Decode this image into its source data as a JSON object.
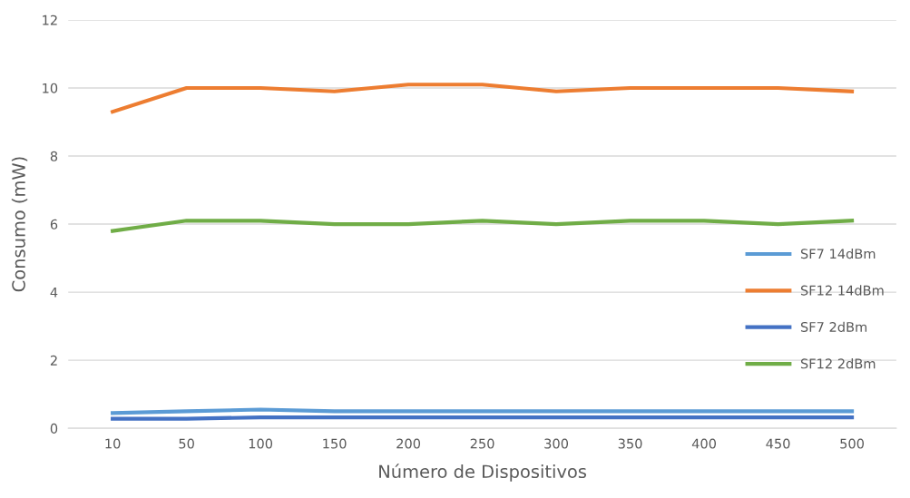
{
  "chart_data": {
    "type": "line",
    "xlabel": "Número de Dispositivos",
    "ylabel": "Consumo (mW)",
    "categories": [
      "10",
      "50",
      "100",
      "150",
      "200",
      "250",
      "300",
      "350",
      "400",
      "450",
      "500"
    ],
    "series": [
      {
        "name": "SF7 14dBm",
        "color": "#5b9bd5",
        "values": [
          0.45,
          0.5,
          0.55,
          0.5,
          0.5,
          0.5,
          0.5,
          0.5,
          0.5,
          0.5,
          0.5
        ]
      },
      {
        "name": "SF12 14dBm",
        "color": "#ed7d31",
        "values": [
          9.3,
          10.0,
          10.0,
          9.9,
          10.1,
          10.1,
          9.9,
          10.0,
          10.0,
          10.0,
          9.9
        ]
      },
      {
        "name": "SF7 2dBm",
        "color": "#4472c4",
        "values": [
          0.28,
          0.28,
          0.32,
          0.32,
          0.32,
          0.32,
          0.32,
          0.32,
          0.32,
          0.32,
          0.32
        ]
      },
      {
        "name": "SF12 2dBm",
        "color": "#70ad47",
        "values": [
          5.8,
          6.1,
          6.1,
          6.0,
          6.0,
          6.1,
          6.0,
          6.1,
          6.1,
          6.0,
          6.1
        ]
      }
    ],
    "ylim": [
      0,
      12
    ],
    "yticks": [
      0,
      2,
      4,
      6,
      8,
      10,
      12
    ],
    "grid": "y",
    "legend": "right",
    "marker": "none",
    "line_style": "solid"
  }
}
